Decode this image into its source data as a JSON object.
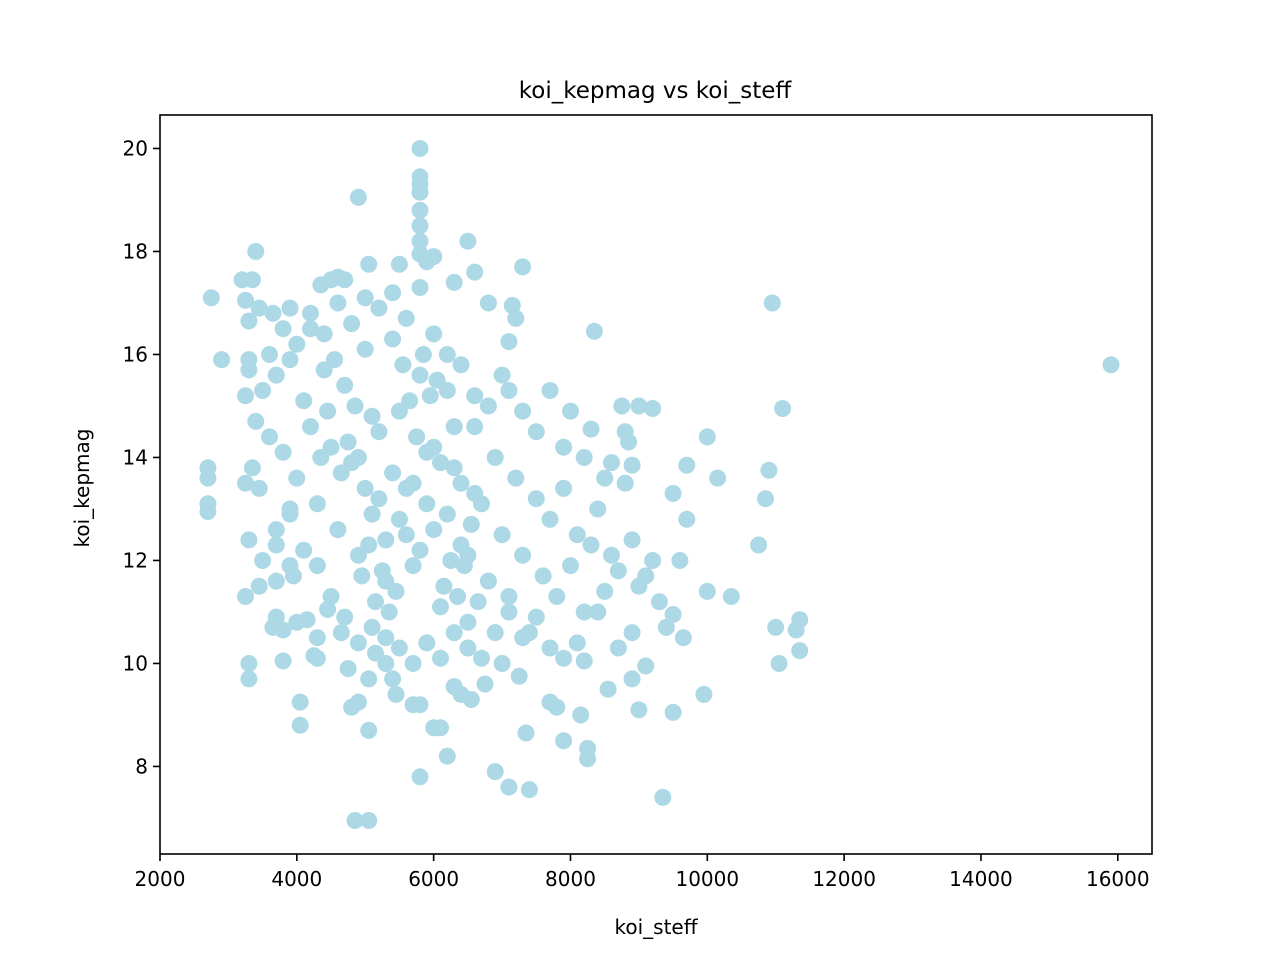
{
  "chart_data": {
    "type": "scatter",
    "title": "koi_kepmag vs koi_steff",
    "xlabel": "koi_steff",
    "ylabel": "koi_kepmag",
    "xlim": [
      2000,
      16500
    ],
    "ylim": [
      6.3,
      20.65
    ],
    "xticks": [
      2000,
      4000,
      6000,
      8000,
      10000,
      12000,
      14000,
      16000
    ],
    "yticks": [
      8,
      10,
      12,
      14,
      16,
      18,
      20
    ],
    "xtick_labels": [
      "2000",
      "4000",
      "6000",
      "8000",
      "10000",
      "12000",
      "14000",
      "16000"
    ],
    "ytick_labels": [
      "8",
      "10",
      "12",
      "14",
      "16",
      "18",
      "20"
    ],
    "grid": false,
    "legend": "none",
    "marker_color": "#add8e6",
    "series": [
      {
        "points": [
          [
            2700,
            13.8
          ],
          [
            2700,
            13.6
          ],
          [
            2700,
            13.1
          ],
          [
            2700,
            12.95
          ],
          [
            2750,
            17.1
          ],
          [
            2900,
            15.9
          ],
          [
            3200,
            17.45
          ],
          [
            3250,
            17.05
          ],
          [
            3350,
            17.45
          ],
          [
            3400,
            18.0
          ],
          [
            3300,
            16.65
          ],
          [
            3450,
            16.9
          ],
          [
            3250,
            11.3
          ],
          [
            3300,
            12.4
          ],
          [
            3300,
            10.0
          ],
          [
            3300,
            9.7
          ],
          [
            3250,
            13.5
          ],
          [
            3350,
            13.8
          ],
          [
            3250,
            15.2
          ],
          [
            3300,
            15.7
          ],
          [
            3300,
            15.9
          ],
          [
            3400,
            14.7
          ],
          [
            3450,
            13.4
          ],
          [
            3450,
            11.5
          ],
          [
            3650,
            16.8
          ],
          [
            3700,
            12.3
          ],
          [
            3700,
            11.6
          ],
          [
            3700,
            10.9
          ],
          [
            3650,
            10.7
          ],
          [
            3800,
            10.65
          ],
          [
            3800,
            10.05
          ],
          [
            3900,
            16.9
          ],
          [
            3900,
            12.9
          ],
          [
            3900,
            11.9
          ],
          [
            3950,
            11.7
          ],
          [
            4000,
            10.8
          ],
          [
            4050,
            9.25
          ],
          [
            4050,
            8.8
          ],
          [
            4150,
            10.85
          ],
          [
            4200,
            16.5
          ],
          [
            4250,
            10.15
          ],
          [
            4300,
            10.1
          ],
          [
            4300,
            10.5
          ],
          [
            4350,
            17.35
          ],
          [
            4450,
            11.05
          ],
          [
            4500,
            17.45
          ],
          [
            4600,
            17.5
          ],
          [
            4700,
            17.45
          ],
          [
            4650,
            10.6
          ],
          [
            4750,
            9.9
          ],
          [
            4800,
            9.15
          ],
          [
            4850,
            6.95
          ],
          [
            4900,
            19.05
          ],
          [
            4900,
            9.25
          ],
          [
            5050,
            6.95
          ],
          [
            5050,
            8.7
          ],
          [
            5050,
            9.7
          ],
          [
            5050,
            17.75
          ],
          [
            5150,
            10.2
          ],
          [
            5300,
            10.0
          ],
          [
            5400,
            9.7
          ],
          [
            5450,
            9.4
          ],
          [
            5500,
            17.75
          ],
          [
            5700,
            9.2
          ],
          [
            5800,
            9.2
          ],
          [
            5800,
            7.8
          ],
          [
            5800,
            20.0
          ],
          [
            5800,
            19.45
          ],
          [
            5800,
            19.3
          ],
          [
            5800,
            19.15
          ],
          [
            5800,
            18.8
          ],
          [
            5800,
            18.5
          ],
          [
            5800,
            18.2
          ],
          [
            5800,
            17.95
          ],
          [
            5900,
            17.8
          ],
          [
            6000,
            17.9
          ],
          [
            6000,
            8.75
          ],
          [
            6100,
            8.75
          ],
          [
            6200,
            8.2
          ],
          [
            6300,
            17.4
          ],
          [
            6300,
            9.55
          ],
          [
            6400,
            9.4
          ],
          [
            6500,
            18.2
          ],
          [
            6550,
            9.3
          ],
          [
            6600,
            17.6
          ],
          [
            6750,
            9.6
          ],
          [
            6800,
            17.0
          ],
          [
            6900,
            7.9
          ],
          [
            7000,
            10.0
          ],
          [
            7100,
            7.6
          ],
          [
            7100,
            16.25
          ],
          [
            7150,
            16.95
          ],
          [
            7200,
            16.7
          ],
          [
            7250,
            9.75
          ],
          [
            7300,
            17.7
          ],
          [
            7350,
            8.65
          ],
          [
            7400,
            7.55
          ],
          [
            7700,
            9.25
          ],
          [
            7800,
            9.15
          ],
          [
            7900,
            8.5
          ],
          [
            8150,
            9.0
          ],
          [
            8250,
            8.15
          ],
          [
            8250,
            8.35
          ],
          [
            8350,
            16.45
          ],
          [
            8550,
            9.5
          ],
          [
            8750,
            15.0
          ],
          [
            8850,
            14.3
          ],
          [
            8900,
            9.7
          ],
          [
            9000,
            9.1
          ],
          [
            9000,
            15.0
          ],
          [
            9200,
            14.95
          ],
          [
            9350,
            7.4
          ],
          [
            9500,
            9.05
          ],
          [
            9500,
            13.3
          ],
          [
            9600,
            12.0
          ],
          [
            9650,
            10.5
          ],
          [
            9700,
            12.8
          ],
          [
            9700,
            13.85
          ],
          [
            9950,
            9.4
          ],
          [
            10000,
            14.4
          ],
          [
            10000,
            11.4
          ],
          [
            10150,
            13.6
          ],
          [
            10350,
            11.3
          ],
          [
            10750,
            12.3
          ],
          [
            10850,
            13.2
          ],
          [
            10900,
            13.75
          ],
          [
            10950,
            17.0
          ],
          [
            11000,
            10.7
          ],
          [
            11050,
            10.0
          ],
          [
            11100,
            14.95
          ],
          [
            11300,
            10.65
          ],
          [
            11350,
            10.85
          ],
          [
            11350,
            10.25
          ],
          [
            15900,
            15.8
          ],
          [
            3500,
            15.3
          ],
          [
            3600,
            14.4
          ],
          [
            3700,
            15.6
          ],
          [
            3800,
            14.1
          ],
          [
            3900,
            15.9
          ],
          [
            4000,
            13.6
          ],
          [
            4100,
            15.1
          ],
          [
            4200,
            14.6
          ],
          [
            4300,
            13.1
          ],
          [
            4400,
            15.7
          ],
          [
            4500,
            14.2
          ],
          [
            4600,
            12.6
          ],
          [
            4700,
            15.4
          ],
          [
            4800,
            13.9
          ],
          [
            4900,
            12.1
          ],
          [
            5000,
            16.1
          ],
          [
            5100,
            14.8
          ],
          [
            5200,
            13.2
          ],
          [
            5300,
            11.6
          ],
          [
            5400,
            16.3
          ],
          [
            5500,
            14.9
          ],
          [
            5600,
            13.4
          ],
          [
            5700,
            11.9
          ],
          [
            5800,
            15.6
          ],
          [
            5900,
            14.1
          ],
          [
            6000,
            12.6
          ],
          [
            6100,
            11.1
          ],
          [
            6200,
            15.3
          ],
          [
            6300,
            13.8
          ],
          [
            6400,
            12.3
          ],
          [
            6500,
            10.8
          ],
          [
            6600,
            14.6
          ],
          [
            6700,
            13.1
          ],
          [
            6800,
            11.6
          ],
          [
            6900,
            14.0
          ],
          [
            7000,
            12.5
          ],
          [
            7100,
            11.0
          ],
          [
            7200,
            13.6
          ],
          [
            7300,
            12.1
          ],
          [
            7400,
            10.6
          ],
          [
            7500,
            13.2
          ],
          [
            7600,
            11.7
          ],
          [
            7700,
            12.8
          ],
          [
            7800,
            11.3
          ],
          [
            7900,
            13.4
          ],
          [
            8000,
            11.9
          ],
          [
            8100,
            12.5
          ],
          [
            8200,
            11.0
          ],
          [
            8300,
            12.3
          ],
          [
            8400,
            13.0
          ],
          [
            8500,
            11.4
          ],
          [
            8600,
            12.1
          ],
          [
            8700,
            11.8
          ],
          [
            8800,
            13.5
          ],
          [
            8900,
            12.4
          ],
          [
            9000,
            11.5
          ],
          [
            9100,
            11.7
          ],
          [
            9200,
            12.0
          ],
          [
            9300,
            11.2
          ],
          [
            9400,
            10.7
          ],
          [
            3600,
            16.0
          ],
          [
            3800,
            16.5
          ],
          [
            4000,
            16.2
          ],
          [
            4200,
            16.8
          ],
          [
            4400,
            16.4
          ],
          [
            4600,
            17.0
          ],
          [
            4800,
            16.6
          ],
          [
            5000,
            17.1
          ],
          [
            5200,
            16.9
          ],
          [
            5400,
            17.2
          ],
          [
            5600,
            16.7
          ],
          [
            5800,
            17.3
          ],
          [
            6000,
            16.4
          ],
          [
            6200,
            16.0
          ],
          [
            6400,
            15.8
          ],
          [
            6600,
            15.2
          ],
          [
            6800,
            15.0
          ],
          [
            7000,
            15.6
          ],
          [
            7100,
            15.3
          ],
          [
            7300,
            14.9
          ],
          [
            7500,
            14.5
          ],
          [
            7700,
            15.3
          ],
          [
            7900,
            14.2
          ],
          [
            8000,
            14.9
          ],
          [
            8200,
            14.0
          ],
          [
            8300,
            14.55
          ],
          [
            8500,
            13.6
          ],
          [
            8600,
            13.9
          ],
          [
            8800,
            14.5
          ],
          [
            8900,
            13.85
          ],
          [
            3500,
            12.0
          ],
          [
            3700,
            12.6
          ],
          [
            3900,
            13.0
          ],
          [
            4100,
            12.2
          ],
          [
            4300,
            11.9
          ],
          [
            4500,
            11.3
          ],
          [
            4700,
            10.9
          ],
          [
            4900,
            10.4
          ],
          [
            5100,
            10.7
          ],
          [
            5300,
            10.5
          ],
          [
            5500,
            10.3
          ],
          [
            5700,
            10.0
          ],
          [
            5900,
            10.4
          ],
          [
            6100,
            10.1
          ],
          [
            6300,
            10.6
          ],
          [
            6500,
            10.3
          ],
          [
            6700,
            10.1
          ],
          [
            6900,
            10.6
          ],
          [
            7100,
            11.3
          ],
          [
            7300,
            10.5
          ],
          [
            7500,
            10.9
          ],
          [
            7700,
            10.3
          ],
          [
            7900,
            10.1
          ],
          [
            8100,
            10.4
          ],
          [
            8200,
            10.05
          ],
          [
            8400,
            11.0
          ],
          [
            8700,
            10.3
          ],
          [
            8900,
            10.6
          ],
          [
            9100,
            9.95
          ],
          [
            9500,
            10.95
          ],
          [
            5600,
            12.5
          ],
          [
            5700,
            13.5
          ],
          [
            5800,
            12.2
          ],
          [
            5900,
            13.1
          ],
          [
            6000,
            14.2
          ],
          [
            5500,
            12.8
          ],
          [
            5400,
            13.7
          ],
          [
            5300,
            12.4
          ],
          [
            5200,
            14.5
          ],
          [
            5100,
            12.9
          ],
          [
            5000,
            13.4
          ],
          [
            4900,
            14.0
          ],
          [
            6100,
            13.9
          ],
          [
            6200,
            12.9
          ],
          [
            6300,
            14.6
          ],
          [
            6400,
            13.5
          ],
          [
            6500,
            12.1
          ],
          [
            6600,
            13.3
          ],
          [
            5650,
            15.1
          ],
          [
            5750,
            14.4
          ],
          [
            5850,
            16.0
          ],
          [
            5950,
            15.2
          ],
          [
            6050,
            15.5
          ],
          [
            5550,
            15.8
          ],
          [
            4850,
            15.0
          ],
          [
            4750,
            14.3
          ],
          [
            4650,
            13.7
          ],
          [
            4550,
            15.9
          ],
          [
            4450,
            14.9
          ],
          [
            4350,
            14.0
          ],
          [
            5450,
            11.4
          ],
          [
            5350,
            11.0
          ],
          [
            5250,
            11.8
          ],
          [
            5150,
            11.2
          ],
          [
            5050,
            12.3
          ],
          [
            4950,
            11.7
          ],
          [
            6150,
            11.5
          ],
          [
            6250,
            12.0
          ],
          [
            6350,
            11.3
          ],
          [
            6450,
            11.9
          ],
          [
            6550,
            12.7
          ],
          [
            6650,
            11.2
          ]
        ]
      }
    ]
  }
}
